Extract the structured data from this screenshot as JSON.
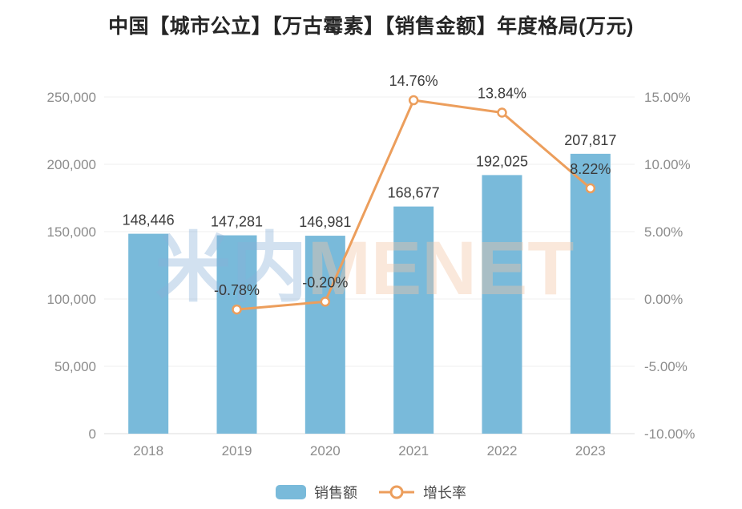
{
  "title": "中国【城市公立】【万古霉素】【销售金额】年度格局(万元)",
  "watermark": {
    "cjk": "米内",
    "latin": "MENET"
  },
  "colors": {
    "bar": "#79bada",
    "line": "#ec9e5c",
    "marker_fill": "#ffffff",
    "grid": "#efefef",
    "axis_line": "#dcdcdc",
    "axis_text": "#8c8c8c",
    "label_text": "#3a3a3a",
    "title_text": "#262626",
    "watermark_cjk": "rgba(137,176,216,0.38)",
    "watermark_latin": "rgba(243,198,166,0.40)"
  },
  "chart_data": {
    "type": "bar+line",
    "title": "中国【城市公立】【万古霉素】【销售金额】年度格局(万元)",
    "categories": [
      "2018",
      "2019",
      "2020",
      "2021",
      "2022",
      "2023"
    ],
    "series": [
      {
        "name": "销售额",
        "type": "bar",
        "axis": "left",
        "values": [
          148446,
          147281,
          146981,
          168677,
          192025,
          207817
        ],
        "labels": [
          "148,446",
          "147,281",
          "146,981",
          "168,677",
          "192,025",
          "207,817"
        ]
      },
      {
        "name": "增长率",
        "type": "line",
        "axis": "right",
        "values": [
          null,
          -0.78,
          -0.2,
          14.76,
          13.84,
          8.22
        ],
        "labels": [
          "",
          "-0.78%",
          "-0.20%",
          "14.76%",
          "13.84%",
          "8.22%"
        ]
      }
    ],
    "y_left": {
      "min": 0,
      "max": 250000,
      "tick_step": 50000,
      "ticks": [
        "0",
        "50,000",
        "100,000",
        "150,000",
        "200,000",
        "250,000"
      ]
    },
    "y_right": {
      "min": -10,
      "max": 15,
      "tick_step": 5,
      "ticks": [
        "-10.00%",
        "-5.00%",
        "0.00%",
        "5.00%",
        "10.00%",
        "15.00%"
      ]
    },
    "grid": true,
    "legend_position": "bottom"
  }
}
